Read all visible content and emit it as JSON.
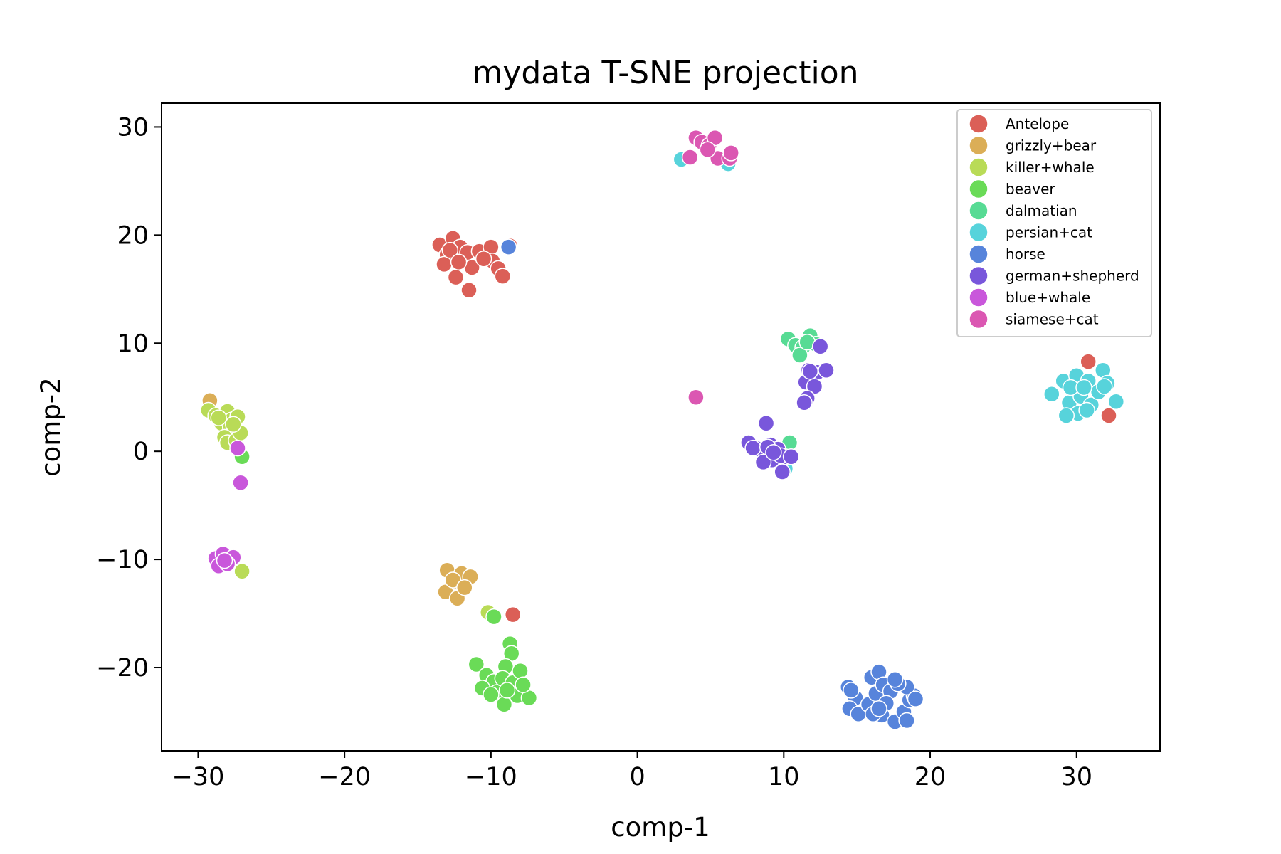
{
  "chart_data": {
    "type": "scatter",
    "title": "mydata T-SNE projection",
    "xlabel": "comp-1",
    "ylabel": "comp-2",
    "xlim": [
      -32.5,
      35.7
    ],
    "ylim": [
      -27.7,
      32.2
    ],
    "xticks": [
      -30,
      -20,
      -10,
      0,
      10,
      20,
      30
    ],
    "yticks": [
      -20,
      -10,
      0,
      10,
      20,
      30
    ],
    "xtick_labels": [
      "−30",
      "−20",
      "−10",
      "0",
      "10",
      "20",
      "30"
    ],
    "ytick_labels": [
      "−20",
      "−10",
      "0",
      "10",
      "20",
      "30"
    ],
    "grid": false,
    "legend_position": "top-right",
    "series": [
      {
        "name": "Antelope",
        "color": "#db5f57",
        "points": [
          [
            -13.5,
            19.1
          ],
          [
            -13.0,
            18.2
          ],
          [
            -12.6,
            19.7
          ],
          [
            -12.1,
            18.9
          ],
          [
            -11.6,
            18.4
          ],
          [
            -13.2,
            17.3
          ],
          [
            -12.4,
            16.1
          ],
          [
            -11.3,
            17.0
          ],
          [
            -10.8,
            18.5
          ],
          [
            -10.0,
            18.9
          ],
          [
            -9.9,
            17.6
          ],
          [
            -9.5,
            16.9
          ],
          [
            -9.2,
            16.2
          ],
          [
            -11.5,
            14.9
          ],
          [
            -12.8,
            18.6
          ],
          [
            -12.2,
            17.5
          ],
          [
            -10.5,
            17.8
          ],
          [
            -8.7,
            19.0
          ],
          [
            -8.5,
            -15.1
          ],
          [
            30.8,
            8.3
          ],
          [
            32.2,
            3.3
          ]
        ]
      },
      {
        "name": "grizzly+bear",
        "color": "#dbae57",
        "points": [
          [
            -29.2,
            4.7
          ],
          [
            -13.0,
            -11.0
          ],
          [
            -12.5,
            -12.0
          ],
          [
            -12.0,
            -11.3
          ],
          [
            -13.1,
            -13.0
          ],
          [
            -12.3,
            -13.6
          ],
          [
            -11.4,
            -11.6
          ],
          [
            -12.6,
            -11.9
          ],
          [
            -11.8,
            -12.6
          ]
        ]
      },
      {
        "name": "killer+whale",
        "color": "#b9db57",
        "points": [
          [
            -29.3,
            3.8
          ],
          [
            -28.8,
            3.3
          ],
          [
            -28.4,
            2.6
          ],
          [
            -28.0,
            3.7
          ],
          [
            -27.7,
            2.9
          ],
          [
            -27.3,
            3.2
          ],
          [
            -27.8,
            2.2
          ],
          [
            -28.2,
            1.3
          ],
          [
            -28.0,
            0.8
          ],
          [
            -27.4,
            1.0
          ],
          [
            -27.1,
            1.7
          ],
          [
            -28.6,
            3.1
          ],
          [
            -27.6,
            2.5
          ],
          [
            -27.0,
            -11.1
          ],
          [
            -10.2,
            -14.9
          ]
        ]
      },
      {
        "name": "beaver",
        "color": "#6adb57",
        "points": [
          [
            -27.0,
            -0.5
          ],
          [
            -9.8,
            -15.3
          ],
          [
            -8.7,
            -17.8
          ],
          [
            -8.6,
            -18.7
          ],
          [
            -11.0,
            -19.7
          ],
          [
            -10.3,
            -20.7
          ],
          [
            -9.8,
            -21.3
          ],
          [
            -10.6,
            -21.9
          ],
          [
            -9.6,
            -22.3
          ],
          [
            -9.0,
            -19.9
          ],
          [
            -9.2,
            -21.0
          ],
          [
            -8.5,
            -21.4
          ],
          [
            -8.0,
            -20.3
          ],
          [
            -8.2,
            -22.6
          ],
          [
            -7.4,
            -22.8
          ],
          [
            -9.1,
            -23.4
          ],
          [
            -8.9,
            -22.1
          ],
          [
            -7.8,
            -21.6
          ],
          [
            -10.0,
            -22.5
          ]
        ]
      },
      {
        "name": "dalmatian",
        "color": "#57db94",
        "points": [
          [
            10.3,
            10.4
          ],
          [
            10.8,
            9.8
          ],
          [
            11.3,
            9.6
          ],
          [
            11.8,
            10.7
          ],
          [
            12.2,
            9.9
          ],
          [
            11.1,
            8.9
          ],
          [
            11.6,
            10.1
          ],
          [
            10.4,
            0.8
          ]
        ]
      },
      {
        "name": "persian+cat",
        "color": "#57d3db",
        "points": [
          [
            3.0,
            27.0
          ],
          [
            6.2,
            26.6
          ],
          [
            10.1,
            -1.6
          ],
          [
            28.3,
            5.3
          ],
          [
            29.1,
            6.5
          ],
          [
            29.5,
            4.5
          ],
          [
            30.0,
            7.0
          ],
          [
            30.3,
            5.1
          ],
          [
            30.8,
            6.5
          ],
          [
            31.0,
            4.3
          ],
          [
            31.5,
            5.5
          ],
          [
            31.8,
            7.5
          ],
          [
            32.1,
            6.3
          ],
          [
            32.7,
            4.6
          ],
          [
            30.1,
            3.5
          ],
          [
            29.3,
            3.3
          ],
          [
            30.7,
            3.8
          ],
          [
            31.9,
            6.0
          ],
          [
            29.6,
            5.9
          ],
          [
            30.5,
            5.9
          ]
        ]
      },
      {
        "name": "horse",
        "color": "#5784db",
        "points": [
          [
            -8.8,
            18.9
          ],
          [
            14.4,
            -21.8
          ],
          [
            14.9,
            -22.8
          ],
          [
            14.5,
            -23.8
          ],
          [
            15.1,
            -24.3
          ],
          [
            15.8,
            -23.4
          ],
          [
            16.3,
            -22.4
          ],
          [
            16.0,
            -20.9
          ],
          [
            16.5,
            -20.4
          ],
          [
            16.8,
            -21.6
          ],
          [
            17.3,
            -22.2
          ],
          [
            17.0,
            -23.3
          ],
          [
            16.7,
            -24.4
          ],
          [
            17.6,
            -25.0
          ],
          [
            18.2,
            -24.1
          ],
          [
            18.6,
            -23.0
          ],
          [
            18.9,
            -22.6
          ],
          [
            18.4,
            -21.8
          ],
          [
            17.8,
            -21.5
          ],
          [
            16.1,
            -24.3
          ],
          [
            18.4,
            -24.9
          ],
          [
            17.6,
            -21.1
          ],
          [
            19.0,
            -22.9
          ],
          [
            14.6,
            -22.1
          ],
          [
            16.5,
            -23.8
          ]
        ]
      },
      {
        "name": "german+shepherd",
        "color": "#7957db",
        "points": [
          [
            12.5,
            9.7
          ],
          [
            11.7,
            7.5
          ],
          [
            12.3,
            7.3
          ],
          [
            12.9,
            7.5
          ],
          [
            11.5,
            6.4
          ],
          [
            12.1,
            6.0
          ],
          [
            11.6,
            4.9
          ],
          [
            11.4,
            4.5
          ],
          [
            8.8,
            2.6
          ],
          [
            7.6,
            0.8
          ],
          [
            8.1,
            0.3
          ],
          [
            8.6,
            -0.2
          ],
          [
            9.1,
            0.6
          ],
          [
            9.6,
            0.2
          ],
          [
            10.1,
            -0.5
          ],
          [
            9.2,
            -0.8
          ],
          [
            8.6,
            -1.0
          ],
          [
            9.9,
            -1.9
          ],
          [
            9.8,
            -0.4
          ],
          [
            10.5,
            -0.5
          ],
          [
            7.9,
            0.3
          ],
          [
            8.9,
            0.4
          ],
          [
            9.3,
            -0.1
          ],
          [
            11.8,
            7.4
          ]
        ]
      },
      {
        "name": "blue+whale",
        "color": "#c957db",
        "points": [
          [
            -27.3,
            0.3
          ],
          [
            -27.1,
            -2.9
          ],
          [
            -28.8,
            -9.9
          ],
          [
            -28.3,
            -9.5
          ],
          [
            -28.0,
            -10.2
          ],
          [
            -27.6,
            -9.8
          ],
          [
            -28.6,
            -10.6
          ],
          [
            -28.0,
            -10.4
          ],
          [
            -28.2,
            -10.1
          ]
        ]
      },
      {
        "name": "siamese+cat",
        "color": "#db57b2",
        "points": [
          [
            4.0,
            29.0
          ],
          [
            4.4,
            28.6
          ],
          [
            4.9,
            28.3
          ],
          [
            5.3,
            29.0
          ],
          [
            5.5,
            27.1
          ],
          [
            6.3,
            27.1
          ],
          [
            6.4,
            27.6
          ],
          [
            3.6,
            27.2
          ],
          [
            4.8,
            27.9
          ],
          [
            4.0,
            5.0
          ]
        ]
      }
    ]
  }
}
